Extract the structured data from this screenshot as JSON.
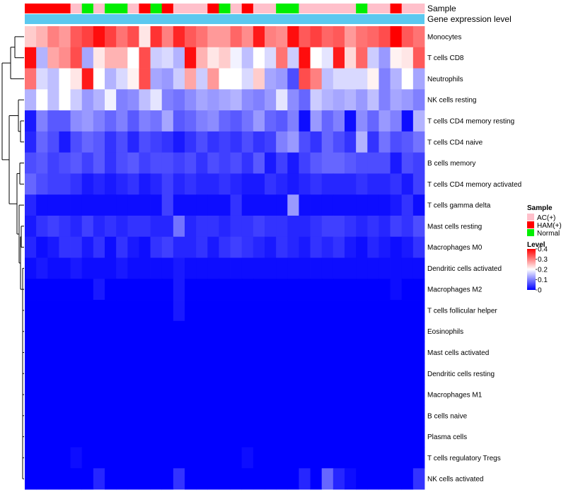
{
  "chart_data": {
    "type": "heatmap",
    "annotation_labels": {
      "sample": "Sample",
      "gene": "Gene expression level"
    },
    "rows": [
      "Monocytes",
      "T cells CD8",
      "Neutrophils",
      "NK cells resting",
      "T cells CD4 memory resting",
      "T cells CD4 naive",
      "B cells memory",
      "T cells CD4 memory activated",
      "T cells gamma delta",
      "Mast cells resting",
      "Macrophages M0",
      "Dendritic cells activated",
      "Macrophages M2",
      "T cells follicular helper",
      "Eosinophils",
      "Mast cells activated",
      "Dendritic cells resting",
      "Macrophages M1",
      "B cells naive",
      "Plasma cells",
      "T cells regulatory  Tregs",
      "NK cells activated"
    ],
    "sample_groups": [
      "HAM(+)",
      "HAM(+)",
      "HAM(+)",
      "HAM(+)",
      "AC(+)",
      "Normal",
      "AC(+)",
      "Normal",
      "Normal",
      "AC(+)",
      "HAM(+)",
      "Normal",
      "HAM(+)",
      "AC(+)",
      "AC(+)",
      "AC(+)",
      "HAM(+)",
      "Normal",
      "AC(+)",
      "HAM(+)",
      "AC(+)",
      "AC(+)",
      "Normal",
      "Normal",
      "AC(+)",
      "AC(+)",
      "AC(+)",
      "AC(+)",
      "AC(+)",
      "Normal",
      "AC(+)",
      "AC(+)",
      "HAM(+)",
      "AC(+)",
      "AC(+)"
    ],
    "values": [
      [
        0.24,
        0.26,
        0.3,
        0.28,
        0.33,
        0.35,
        0.39,
        0.35,
        0.31,
        0.34,
        0.22,
        0.36,
        0.3,
        0.37,
        0.33,
        0.31,
        0.28,
        0.28,
        0.32,
        0.29,
        0.38,
        0.3,
        0.29,
        0.39,
        0.33,
        0.35,
        0.32,
        0.33,
        0.28,
        0.31,
        0.32,
        0.34,
        0.4,
        0.33,
        0.31
      ],
      [
        0.39,
        0.14,
        0.27,
        0.29,
        0.34,
        0.13,
        0.22,
        0.26,
        0.26,
        0.2,
        0.34,
        0.16,
        0.17,
        0.14,
        0.39,
        0.26,
        0.22,
        0.24,
        0.19,
        0.15,
        0.2,
        0.17,
        0.31,
        0.16,
        0.39,
        0.2,
        0.18,
        0.38,
        0.23,
        0.32,
        0.16,
        0.12,
        0.21,
        0.22,
        0.33
      ],
      [
        0.31,
        0.17,
        0.15,
        0.2,
        0.22,
        0.38,
        0.2,
        0.14,
        0.17,
        0.21,
        0.34,
        0.13,
        0.12,
        0.16,
        0.27,
        0.16,
        0.28,
        0.2,
        0.2,
        0.17,
        0.24,
        0.13,
        0.12,
        0.06,
        0.34,
        0.3,
        0.15,
        0.17,
        0.17,
        0.17,
        0.21,
        0.1,
        0.14,
        0.2,
        0.13
      ],
      [
        0.14,
        0.2,
        0.15,
        0.2,
        0.16,
        0.12,
        0.14,
        0.19,
        0.1,
        0.11,
        0.15,
        0.18,
        0.1,
        0.09,
        0.11,
        0.13,
        0.12,
        0.13,
        0.14,
        0.11,
        0.1,
        0.12,
        0.18,
        0.11,
        0.08,
        0.16,
        0.14,
        0.13,
        0.14,
        0.12,
        0.15,
        0.1,
        0.13,
        0.12,
        0.1
      ],
      [
        0.02,
        0.1,
        0.07,
        0.07,
        0.11,
        0.12,
        0.1,
        0.08,
        0.1,
        0.07,
        0.1,
        0.09,
        0.13,
        0.07,
        0.08,
        0.1,
        0.11,
        0.08,
        0.07,
        0.09,
        0.12,
        0.08,
        0.07,
        0.1,
        0.01,
        0.12,
        0.08,
        0.1,
        0.01,
        0.11,
        0.08,
        0.12,
        0.1,
        0.01,
        0.14
      ],
      [
        0.03,
        0.08,
        0.06,
        0.02,
        0.06,
        0.08,
        0.07,
        0.04,
        0.06,
        0.03,
        0.06,
        0.05,
        0.04,
        0.02,
        0.04,
        0.06,
        0.04,
        0.05,
        0.04,
        0.06,
        0.04,
        0.05,
        0.1,
        0.12,
        0.06,
        0.04,
        0.08,
        0.06,
        0.04,
        0.14,
        0.04,
        0.09,
        0.06,
        0.07,
        0.09
      ],
      [
        0.06,
        0.07,
        0.05,
        0.06,
        0.07,
        0.05,
        0.07,
        0.04,
        0.06,
        0.07,
        0.05,
        0.06,
        0.06,
        0.05,
        0.06,
        0.04,
        0.06,
        0.05,
        0.06,
        0.04,
        0.07,
        0.02,
        0.05,
        0.02,
        0.05,
        0.07,
        0.08,
        0.08,
        0.07,
        0.06,
        0.06,
        0.06,
        0.02,
        0.06,
        0.05
      ],
      [
        0.08,
        0.06,
        0.05,
        0.05,
        0.04,
        0.02,
        0.03,
        0.02,
        0.03,
        0.04,
        0.02,
        0.03,
        0.05,
        0.03,
        0.04,
        0.03,
        0.03,
        0.04,
        0.03,
        0.02,
        0.02,
        0.04,
        0.03,
        0.02,
        0.03,
        0.04,
        0.03,
        0.03,
        0.03,
        0.04,
        0.03,
        0.03,
        0.04,
        0.02,
        0.05
      ],
      [
        0.03,
        0.01,
        0.01,
        0.01,
        0.01,
        0.01,
        0.01,
        0.01,
        0.01,
        0.01,
        0.01,
        0.01,
        0.05,
        0.01,
        0.01,
        0.01,
        0.01,
        0.01,
        0.04,
        0.01,
        0.01,
        0.01,
        0.01,
        0.12,
        0.01,
        0.01,
        0.01,
        0.01,
        0.01,
        0.01,
        0.01,
        0.01,
        0.02,
        0.04,
        0.01
      ],
      [
        0.02,
        0.04,
        0.05,
        0.04,
        0.03,
        0.05,
        0.03,
        0.04,
        0.03,
        0.04,
        0.04,
        0.03,
        0.03,
        0.09,
        0.03,
        0.04,
        0.04,
        0.03,
        0.04,
        0.04,
        0.05,
        0.04,
        0.04,
        0.03,
        0.03,
        0.04,
        0.05,
        0.05,
        0.04,
        0.03,
        0.04,
        0.03,
        0.05,
        0.04,
        0.06
      ],
      [
        0.03,
        0.01,
        0.02,
        0.04,
        0.04,
        0.02,
        0.04,
        0.01,
        0.04,
        0.02,
        0.01,
        0.04,
        0.05,
        0.03,
        0.03,
        0.04,
        0.02,
        0.04,
        0.05,
        0.04,
        0.03,
        0.02,
        0.04,
        0.03,
        0.02,
        0.04,
        0.03,
        0.04,
        0.02,
        0.01,
        0.03,
        0.02,
        0.01,
        0.02,
        0.04
      ],
      [
        0.01,
        0.02,
        0.01,
        0.01,
        0.02,
        0.01,
        0.01,
        0.01,
        0.02,
        0.01,
        0.01,
        0.01,
        0.01,
        0.02,
        0.01,
        0.01,
        0.01,
        0.01,
        0.01,
        0.01,
        0.01,
        0.01,
        0.01,
        0.01,
        0.01,
        0.01,
        0.01,
        0.01,
        0.01,
        0.01,
        0.01,
        0.01,
        0.01,
        0.01,
        0.01
      ],
      [
        0.0,
        0.0,
        0.0,
        0.0,
        0.0,
        0.0,
        0.02,
        0.0,
        0.0,
        0.0,
        0.0,
        0.0,
        0.0,
        0.02,
        0.0,
        0.0,
        0.0,
        0.0,
        0.0,
        0.0,
        0.0,
        0.0,
        0.0,
        0.0,
        0.0,
        0.0,
        0.0,
        0.0,
        0.0,
        0.0,
        0.0,
        0.0,
        0.01,
        0.0,
        0.0
      ],
      [
        0.0,
        0.0,
        0.0,
        0.0,
        0.0,
        0.0,
        0.0,
        0.0,
        0.0,
        0.0,
        0.0,
        0.0,
        0.0,
        0.02,
        0.0,
        0.0,
        0.0,
        0.0,
        0.0,
        0.0,
        0.0,
        0.0,
        0.0,
        0.0,
        0.0,
        0.0,
        0.0,
        0.0,
        0.0,
        0.0,
        0.0,
        0.0,
        0.0,
        0.0,
        0.0
      ],
      [
        0.0,
        0.0,
        0.0,
        0.0,
        0.0,
        0.0,
        0.0,
        0.0,
        0.0,
        0.0,
        0.0,
        0.0,
        0.0,
        0.0,
        0.0,
        0.0,
        0.0,
        0.0,
        0.0,
        0.0,
        0.0,
        0.0,
        0.0,
        0.0,
        0.0,
        0.0,
        0.0,
        0.0,
        0.0,
        0.0,
        0.0,
        0.0,
        0.0,
        0.0,
        0.0
      ],
      [
        0.0,
        0.0,
        0.0,
        0.0,
        0.0,
        0.0,
        0.0,
        0.0,
        0.0,
        0.0,
        0.0,
        0.0,
        0.0,
        0.0,
        0.0,
        0.0,
        0.0,
        0.0,
        0.0,
        0.0,
        0.0,
        0.0,
        0.0,
        0.0,
        0.0,
        0.0,
        0.0,
        0.0,
        0.0,
        0.0,
        0.0,
        0.0,
        0.0,
        0.0,
        0.0
      ],
      [
        0.0,
        0.0,
        0.0,
        0.0,
        0.0,
        0.0,
        0.0,
        0.0,
        0.0,
        0.0,
        0.0,
        0.0,
        0.0,
        0.0,
        0.0,
        0.0,
        0.0,
        0.0,
        0.0,
        0.0,
        0.0,
        0.0,
        0.0,
        0.0,
        0.0,
        0.0,
        0.0,
        0.0,
        0.0,
        0.0,
        0.0,
        0.0,
        0.0,
        0.0,
        0.0
      ],
      [
        0.0,
        0.0,
        0.0,
        0.0,
        0.0,
        0.0,
        0.0,
        0.0,
        0.0,
        0.0,
        0.0,
        0.0,
        0.0,
        0.0,
        0.0,
        0.0,
        0.0,
        0.0,
        0.0,
        0.0,
        0.0,
        0.0,
        0.0,
        0.0,
        0.0,
        0.0,
        0.0,
        0.0,
        0.0,
        0.0,
        0.0,
        0.0,
        0.0,
        0.0,
        0.0
      ],
      [
        0.0,
        0.0,
        0.0,
        0.0,
        0.0,
        0.0,
        0.0,
        0.0,
        0.0,
        0.0,
        0.0,
        0.0,
        0.0,
        0.0,
        0.0,
        0.0,
        0.0,
        0.0,
        0.0,
        0.0,
        0.0,
        0.0,
        0.0,
        0.0,
        0.0,
        0.0,
        0.0,
        0.0,
        0.0,
        0.0,
        0.0,
        0.0,
        0.0,
        0.0,
        0.0
      ],
      [
        0.0,
        0.0,
        0.0,
        0.0,
        0.0,
        0.0,
        0.0,
        0.0,
        0.0,
        0.0,
        0.0,
        0.0,
        0.0,
        0.0,
        0.0,
        0.0,
        0.0,
        0.0,
        0.0,
        0.0,
        0.0,
        0.0,
        0.0,
        0.0,
        0.0,
        0.0,
        0.0,
        0.0,
        0.0,
        0.0,
        0.0,
        0.0,
        0.0,
        0.0,
        0.0
      ],
      [
        0.0,
        0.0,
        0.0,
        0.0,
        0.01,
        0.0,
        0.0,
        0.0,
        0.0,
        0.0,
        0.0,
        0.0,
        0.0,
        0.0,
        0.0,
        0.0,
        0.0,
        0.0,
        0.0,
        0.01,
        0.0,
        0.0,
        0.0,
        0.0,
        0.0,
        0.0,
        0.0,
        0.0,
        0.0,
        0.0,
        0.0,
        0.0,
        0.0,
        0.0,
        0.0
      ],
      [
        0.0,
        0.0,
        0.0,
        0.0,
        0.0,
        0.0,
        0.03,
        0.0,
        0.0,
        0.0,
        0.0,
        0.0,
        0.0,
        0.04,
        0.0,
        0.0,
        0.0,
        0.0,
        0.0,
        0.0,
        0.0,
        0.0,
        0.0,
        0.0,
        0.03,
        0.0,
        0.08,
        0.03,
        0.01,
        0.0,
        0.0,
        0.0,
        0.0,
        0.0,
        0.04
      ]
    ],
    "legend": {
      "sample_title": "Sample",
      "sample_items": [
        {
          "label": "AC(+)",
          "color": "#ffc0cb"
        },
        {
          "label": "HAM(+)",
          "color": "#ff0000"
        },
        {
          "label": "Normal",
          "color": "#00ee00"
        }
      ],
      "level_title": "Level",
      "level_ticks": [
        "0.4",
        "0.3",
        "0.2",
        "0.1",
        "0"
      ],
      "level_range": [
        0,
        0.4
      ]
    },
    "colors": {
      "low": "#0000ff",
      "mid": "#ffffff",
      "high": "#ff0000",
      "gene_band": "#5bc8ef"
    }
  }
}
